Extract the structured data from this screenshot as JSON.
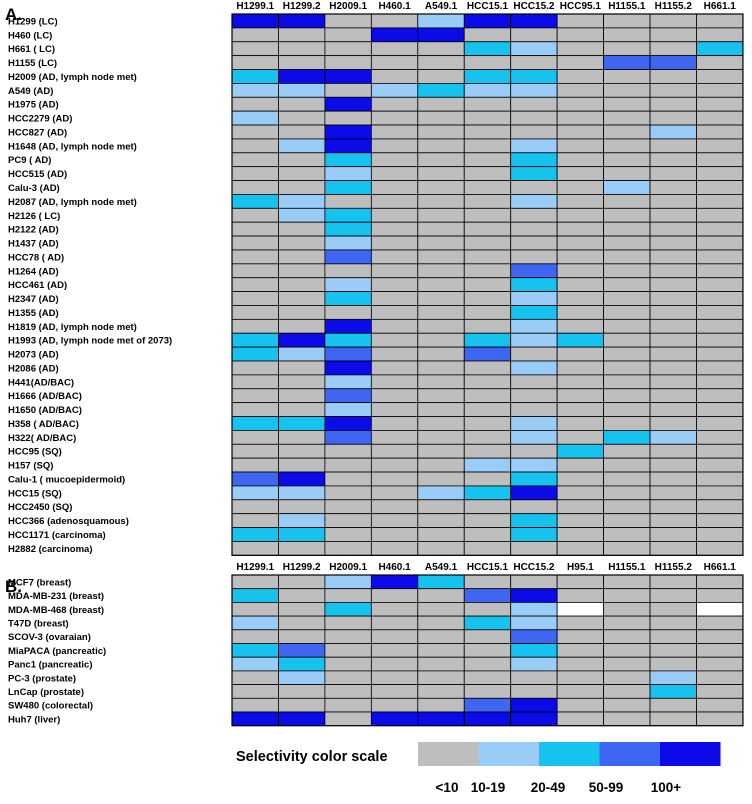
{
  "colors": {
    "lt10": "#bebebe",
    "c10_19": "#99ccf7",
    "c20_49": "#16c3ee",
    "c50_99": "#3e66f2",
    "c100p": "#0a0be8",
    "na": "#ffffff",
    "grid": "#000000"
  },
  "scale": {
    "title": "Selectivity color scale",
    "labels": [
      "<10",
      "10-19",
      "20-49",
      "50-99",
      "100+"
    ],
    "keys": [
      "lt10",
      "c10_19",
      "c20_49",
      "c50_99",
      "c100p"
    ]
  },
  "chart_data": [
    {
      "type": "heatmap",
      "panel_label": "A.",
      "columns": [
        "H1299.1",
        "H1299.2",
        "H2009.1",
        "H460.1",
        "A549.1",
        "HCC15.1",
        "HCC15.2",
        "HCC95.1",
        "H1155.1",
        "H1155.2",
        "H661.1"
      ],
      "rows": [
        "H1299 (LC)",
        "H460 (LC)",
        "H661 ( LC)",
        "H1155 (LC)",
        "H2009 (AD, lymph node met)",
        "A549 (AD)",
        "H1975 (AD)",
        "HCC2279 (AD)",
        "HCC827 (AD)",
        "H1648 (AD, lymph node met)",
        "PC9 ( AD)",
        "HCC515 (AD)",
        "Calu-3 (AD)",
        "H2087 (AD, lymph node met)",
        "H2126 ( LC)",
        "H2122 (AD)",
        "H1437 (AD)",
        "HCC78 ( AD)",
        "H1264 (AD)",
        "HCC461 (AD)",
        "H2347 (AD)",
        "H1355 (AD)",
        "H1819 (AD, lymph node met)",
        "H1993 (AD, lymph node met of 2073)",
        "H2073 (AD)",
        "H2086 (AD)",
        "H441(AD/BAC)",
        "H1666 (AD/BAC)",
        "H1650 (AD/BAC)",
        "H358 ( AD/BAC)",
        "H322( AD/BAC)",
        "HCC95 (SQ)",
        "H157 (SQ)",
        "Calu-1 ( mucoepidermoid)",
        "HCC15 (SQ)",
        "HCC2450 (SQ)",
        "HCC366 (adenosquamous)",
        "HCC1171 (carcinoma)",
        "H2882 (carcinoma)"
      ],
      "category_scale": [
        "<10",
        "10-19",
        "20-49",
        "50-99",
        "100+"
      ],
      "values": [
        [
          4,
          4,
          0,
          0,
          1,
          4,
          4,
          0,
          0,
          0,
          0
        ],
        [
          0,
          0,
          0,
          4,
          4,
          0,
          0,
          0,
          0,
          0,
          0
        ],
        [
          0,
          0,
          0,
          0,
          0,
          2,
          1,
          0,
          0,
          0,
          2
        ],
        [
          0,
          0,
          0,
          0,
          0,
          0,
          0,
          0,
          3,
          3,
          0
        ],
        [
          2,
          4,
          4,
          0,
          0,
          2,
          2,
          0,
          0,
          0,
          0
        ],
        [
          1,
          1,
          0,
          1,
          2,
          1,
          1,
          0,
          0,
          0,
          0
        ],
        [
          0,
          0,
          4,
          0,
          0,
          0,
          0,
          0,
          0,
          0,
          0
        ],
        [
          1,
          0,
          0,
          0,
          0,
          0,
          0,
          0,
          0,
          0,
          0
        ],
        [
          0,
          0,
          4,
          0,
          0,
          0,
          0,
          0,
          0,
          1,
          0
        ],
        [
          0,
          1,
          4,
          0,
          0,
          0,
          1,
          0,
          0,
          0,
          0
        ],
        [
          0,
          0,
          2,
          0,
          0,
          0,
          2,
          0,
          0,
          0,
          0
        ],
        [
          0,
          0,
          1,
          0,
          0,
          0,
          2,
          0,
          0,
          0,
          0
        ],
        [
          0,
          0,
          2,
          0,
          0,
          0,
          0,
          0,
          1,
          0,
          0
        ],
        [
          2,
          1,
          0,
          0,
          0,
          0,
          1,
          0,
          0,
          0,
          0
        ],
        [
          0,
          1,
          2,
          0,
          0,
          0,
          0,
          0,
          0,
          0,
          0
        ],
        [
          0,
          0,
          2,
          0,
          0,
          0,
          0,
          0,
          0,
          0,
          0
        ],
        [
          0,
          0,
          1,
          0,
          0,
          0,
          0,
          0,
          0,
          0,
          0
        ],
        [
          0,
          0,
          3,
          0,
          0,
          0,
          0,
          0,
          0,
          0,
          0
        ],
        [
          0,
          0,
          0,
          0,
          0,
          0,
          3,
          0,
          0,
          0,
          0
        ],
        [
          0,
          0,
          1,
          0,
          0,
          0,
          2,
          0,
          0,
          0,
          0
        ],
        [
          0,
          0,
          2,
          0,
          0,
          0,
          1,
          0,
          0,
          0,
          0
        ],
        [
          0,
          0,
          0,
          0,
          0,
          0,
          2,
          0,
          0,
          0,
          0
        ],
        [
          0,
          0,
          4,
          0,
          0,
          0,
          1,
          0,
          0,
          0,
          0
        ],
        [
          2,
          4,
          2,
          0,
          0,
          2,
          1,
          2,
          0,
          0,
          0
        ],
        [
          2,
          1,
          3,
          0,
          0,
          3,
          0,
          0,
          0,
          0,
          0
        ],
        [
          0,
          0,
          4,
          0,
          0,
          0,
          1,
          0,
          0,
          0,
          0
        ],
        [
          0,
          0,
          1,
          0,
          0,
          0,
          0,
          0,
          0,
          0,
          0
        ],
        [
          0,
          0,
          3,
          0,
          0,
          0,
          0,
          0,
          0,
          0,
          0
        ],
        [
          0,
          0,
          1,
          0,
          0,
          0,
          0,
          0,
          0,
          0,
          0
        ],
        [
          2,
          2,
          4,
          0,
          0,
          0,
          1,
          0,
          0,
          0,
          0
        ],
        [
          0,
          0,
          3,
          0,
          0,
          0,
          1,
          0,
          2,
          1,
          0
        ],
        [
          0,
          0,
          0,
          0,
          0,
          0,
          0,
          2,
          0,
          0,
          0
        ],
        [
          0,
          0,
          0,
          0,
          0,
          1,
          1,
          0,
          0,
          0,
          0
        ],
        [
          3,
          4,
          0,
          0,
          0,
          0,
          2,
          0,
          0,
          0,
          0
        ],
        [
          1,
          1,
          0,
          0,
          1,
          2,
          4,
          0,
          0,
          0,
          0
        ],
        [
          0,
          0,
          0,
          0,
          0,
          0,
          0,
          0,
          0,
          0,
          0
        ],
        [
          0,
          1,
          0,
          0,
          0,
          0,
          2,
          0,
          0,
          0,
          0
        ],
        [
          2,
          2,
          0,
          0,
          0,
          0,
          2,
          0,
          0,
          0,
          0
        ],
        [
          0,
          0,
          0,
          0,
          0,
          0,
          0,
          0,
          0,
          0,
          0
        ]
      ]
    },
    {
      "type": "heatmap",
      "panel_label": "B.",
      "columns": [
        "H1299.1",
        "H1299.2",
        "H2009.1",
        "H460.1",
        "A549.1",
        "HCC15.1",
        "HCC15.2",
        "H95.1",
        "H1155.1",
        "H1155.2",
        "H661.1"
      ],
      "rows": [
        "MCF7 (breast)",
        "MDA-MB-231 (breast)",
        "MDA-MB-468 (breast)",
        "T47D (breast)",
        "SCOV-3 (ovaraian)",
        "MiaPACA (pancreatic)",
        "Panc1 (pancreatic)",
        "PC-3 (prostate)",
        "LnCap (prostate)",
        "SW480 (colorectal)",
        "Huh7 (liver)"
      ],
      "category_scale": [
        "<10",
        "10-19",
        "20-49",
        "50-99",
        "100+"
      ],
      "missing_value": -1,
      "values": [
        [
          0,
          0,
          1,
          4,
          2,
          0,
          0,
          0,
          0,
          0,
          0
        ],
        [
          2,
          0,
          0,
          0,
          0,
          3,
          4,
          0,
          0,
          0,
          0
        ],
        [
          0,
          0,
          2,
          0,
          0,
          0,
          1,
          -1,
          0,
          0,
          -1
        ],
        [
          1,
          0,
          0,
          0,
          0,
          2,
          1,
          0,
          0,
          0,
          0
        ],
        [
          0,
          0,
          0,
          0,
          0,
          0,
          3,
          0,
          0,
          0,
          0
        ],
        [
          2,
          3,
          0,
          0,
          0,
          0,
          2,
          0,
          0,
          0,
          0
        ],
        [
          1,
          2,
          0,
          0,
          0,
          0,
          1,
          0,
          0,
          0,
          0
        ],
        [
          0,
          1,
          0,
          0,
          0,
          0,
          0,
          0,
          0,
          1,
          0
        ],
        [
          0,
          0,
          0,
          0,
          0,
          0,
          0,
          0,
          0,
          2,
          0
        ],
        [
          0,
          0,
          0,
          0,
          0,
          3,
          4,
          0,
          0,
          0,
          0
        ],
        [
          4,
          4,
          0,
          4,
          4,
          4,
          4,
          0,
          0,
          0,
          0
        ]
      ]
    }
  ]
}
